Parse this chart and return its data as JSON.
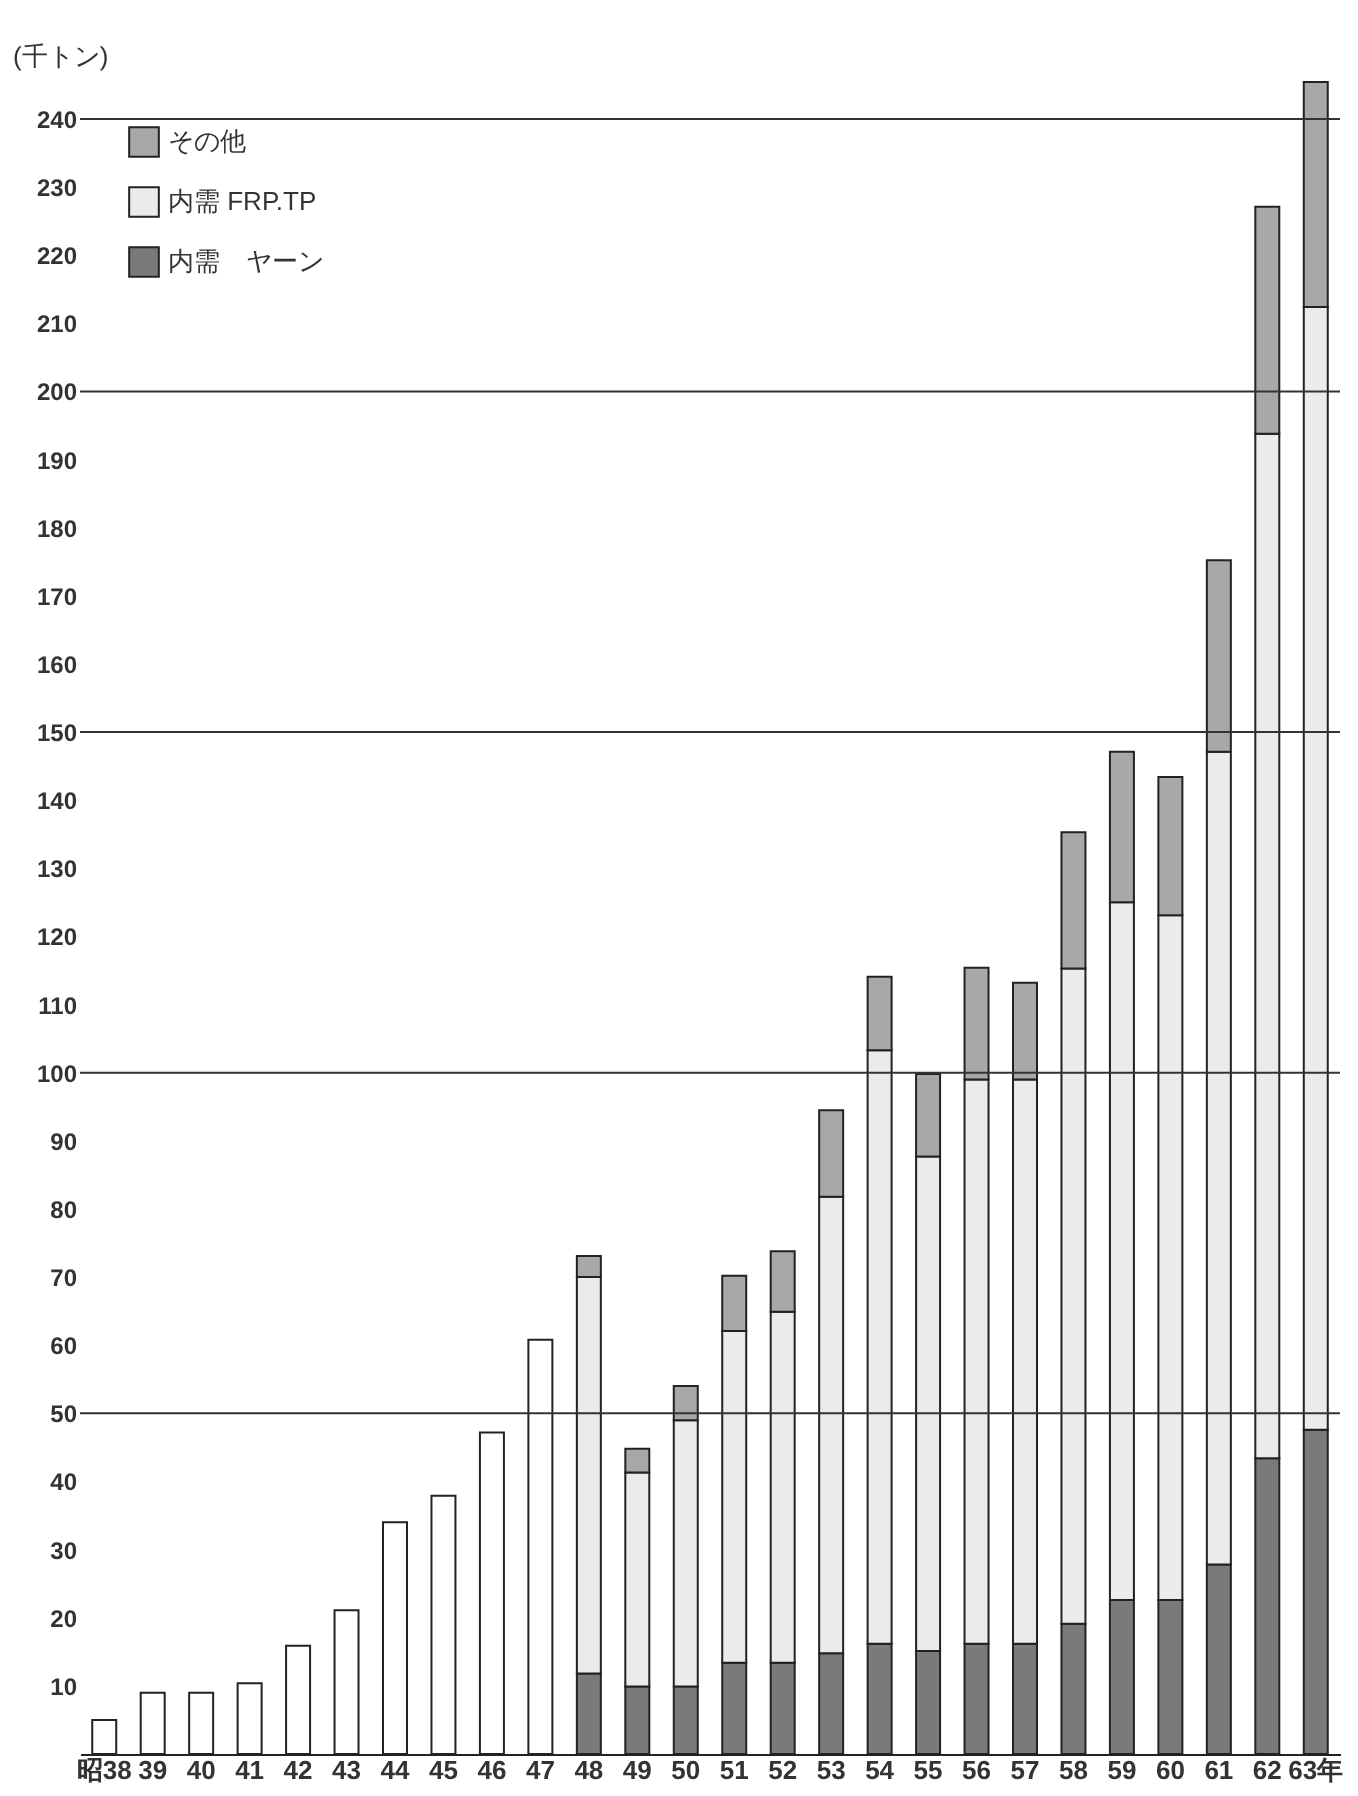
{
  "chart_data": {
    "type": "bar",
    "stacked": true,
    "ylabel": "(千トン)",
    "categories": [
      "昭38",
      "39",
      "40",
      "41",
      "42",
      "43",
      "44",
      "45",
      "46",
      "47",
      "48",
      "49",
      "50",
      "51",
      "52",
      "53",
      "54",
      "55",
      "56",
      "57",
      "58",
      "59",
      "60",
      "61",
      "62",
      "63年"
    ],
    "series": [
      {
        "name": "内需　ヤーン",
        "color": "#7a7a7a",
        "values": [
          null,
          null,
          null,
          null,
          null,
          null,
          null,
          null,
          null,
          null,
          11.8,
          9.9,
          9.9,
          13.4,
          13.4,
          14.8,
          16.2,
          15.1,
          16.2,
          16.2,
          19.1,
          22.6,
          22.6,
          27.8,
          43.4,
          47.6
        ]
      },
      {
        "name": "内需 FRP.TP",
        "color": "#ebebeb",
        "values": [
          null,
          null,
          null,
          null,
          null,
          null,
          null,
          null,
          null,
          null,
          58.2,
          31.4,
          39.1,
          48.7,
          51.5,
          67.0,
          87.1,
          72.6,
          82.8,
          82.8,
          96.2,
          102.4,
          100.5,
          119.3,
          150.4,
          164.8
        ]
      },
      {
        "name": "その他",
        "color": "#a8a8a8",
        "values": [
          null,
          null,
          null,
          null,
          null,
          null,
          null,
          null,
          null,
          null,
          3.1,
          3.5,
          5.0,
          8.1,
          8.9,
          12.7,
          10.8,
          12.1,
          16.4,
          14.2,
          20.0,
          22.1,
          20.3,
          28.1,
          33.3,
          33.0
        ]
      },
      {
        "color": "#ffffff",
        "values": [
          5.0,
          9.0,
          9.0,
          10.4,
          15.9,
          21.1,
          34.0,
          37.9,
          47.2,
          60.8,
          null,
          null,
          null,
          null,
          null,
          null,
          null,
          null,
          null,
          null,
          null,
          null,
          null,
          null,
          null,
          null
        ]
      }
    ],
    "ylim": [
      0,
      246
    ],
    "yticks": [
      10,
      20,
      30,
      40,
      50,
      60,
      70,
      80,
      90,
      100,
      110,
      120,
      130,
      140,
      150,
      160,
      170,
      180,
      190,
      200,
      210,
      220,
      230,
      240
    ],
    "ref_lines": [
      {
        "axis": "y",
        "value": 50
      },
      {
        "axis": "y",
        "value": 100
      },
      {
        "axis": "y",
        "value": 150
      },
      {
        "axis": "y",
        "value": 200
      },
      {
        "axis": "y",
        "value": 240
      }
    ],
    "grid": false,
    "legend": "top left"
  }
}
